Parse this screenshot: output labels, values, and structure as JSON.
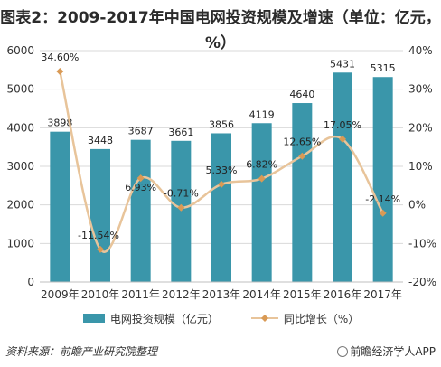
{
  "title": "图表2：2009-2017年中国电网投资规模及增速（单位：亿元，%）",
  "source": "资料来源：前瞻产业研究院整理",
  "brand": "前瞻经济学人APP",
  "colors": {
    "bar": "#3a96aa",
    "line": "#e8c49a",
    "marker": "#d99a55",
    "grid": "#d9d9d9"
  },
  "chart_data": {
    "type": "bar",
    "categories": [
      "2009年",
      "2010年",
      "2011年",
      "2012年",
      "2013年",
      "2014年",
      "2015年",
      "2016年",
      "2017年"
    ],
    "series": [
      {
        "name": "电网投资规模（亿元）",
        "type": "bar",
        "axis": "left",
        "values": [
          3898,
          3448,
          3687,
          3661,
          3856,
          4119,
          4640,
          5431,
          5315
        ],
        "labels": [
          "3898",
          "3448",
          "3687",
          "3661",
          "3856",
          "4119",
          "4640",
          "5431",
          "5315"
        ]
      },
      {
        "name": "同比增长（%）",
        "type": "line",
        "axis": "right",
        "values": [
          34.6,
          -11.54,
          6.93,
          -0.71,
          5.33,
          6.82,
          12.65,
          17.05,
          -2.14
        ],
        "labels": [
          "34.60%",
          "-11.54%",
          "6.93%",
          "-0.71%",
          "5.33%",
          "6.82%",
          "12.65%",
          "17.05%",
          "-2.14%"
        ]
      }
    ],
    "y_left": {
      "min": 0,
      "max": 6000,
      "ticks": [
        "0",
        "1000",
        "2000",
        "3000",
        "4000",
        "5000",
        "6000"
      ]
    },
    "y_right": {
      "min": -20,
      "max": 40,
      "ticks": [
        "-20%",
        "-10%",
        "0%",
        "10%",
        "20%",
        "30%",
        "40%"
      ]
    },
    "grid": true,
    "legend": "bottom"
  }
}
